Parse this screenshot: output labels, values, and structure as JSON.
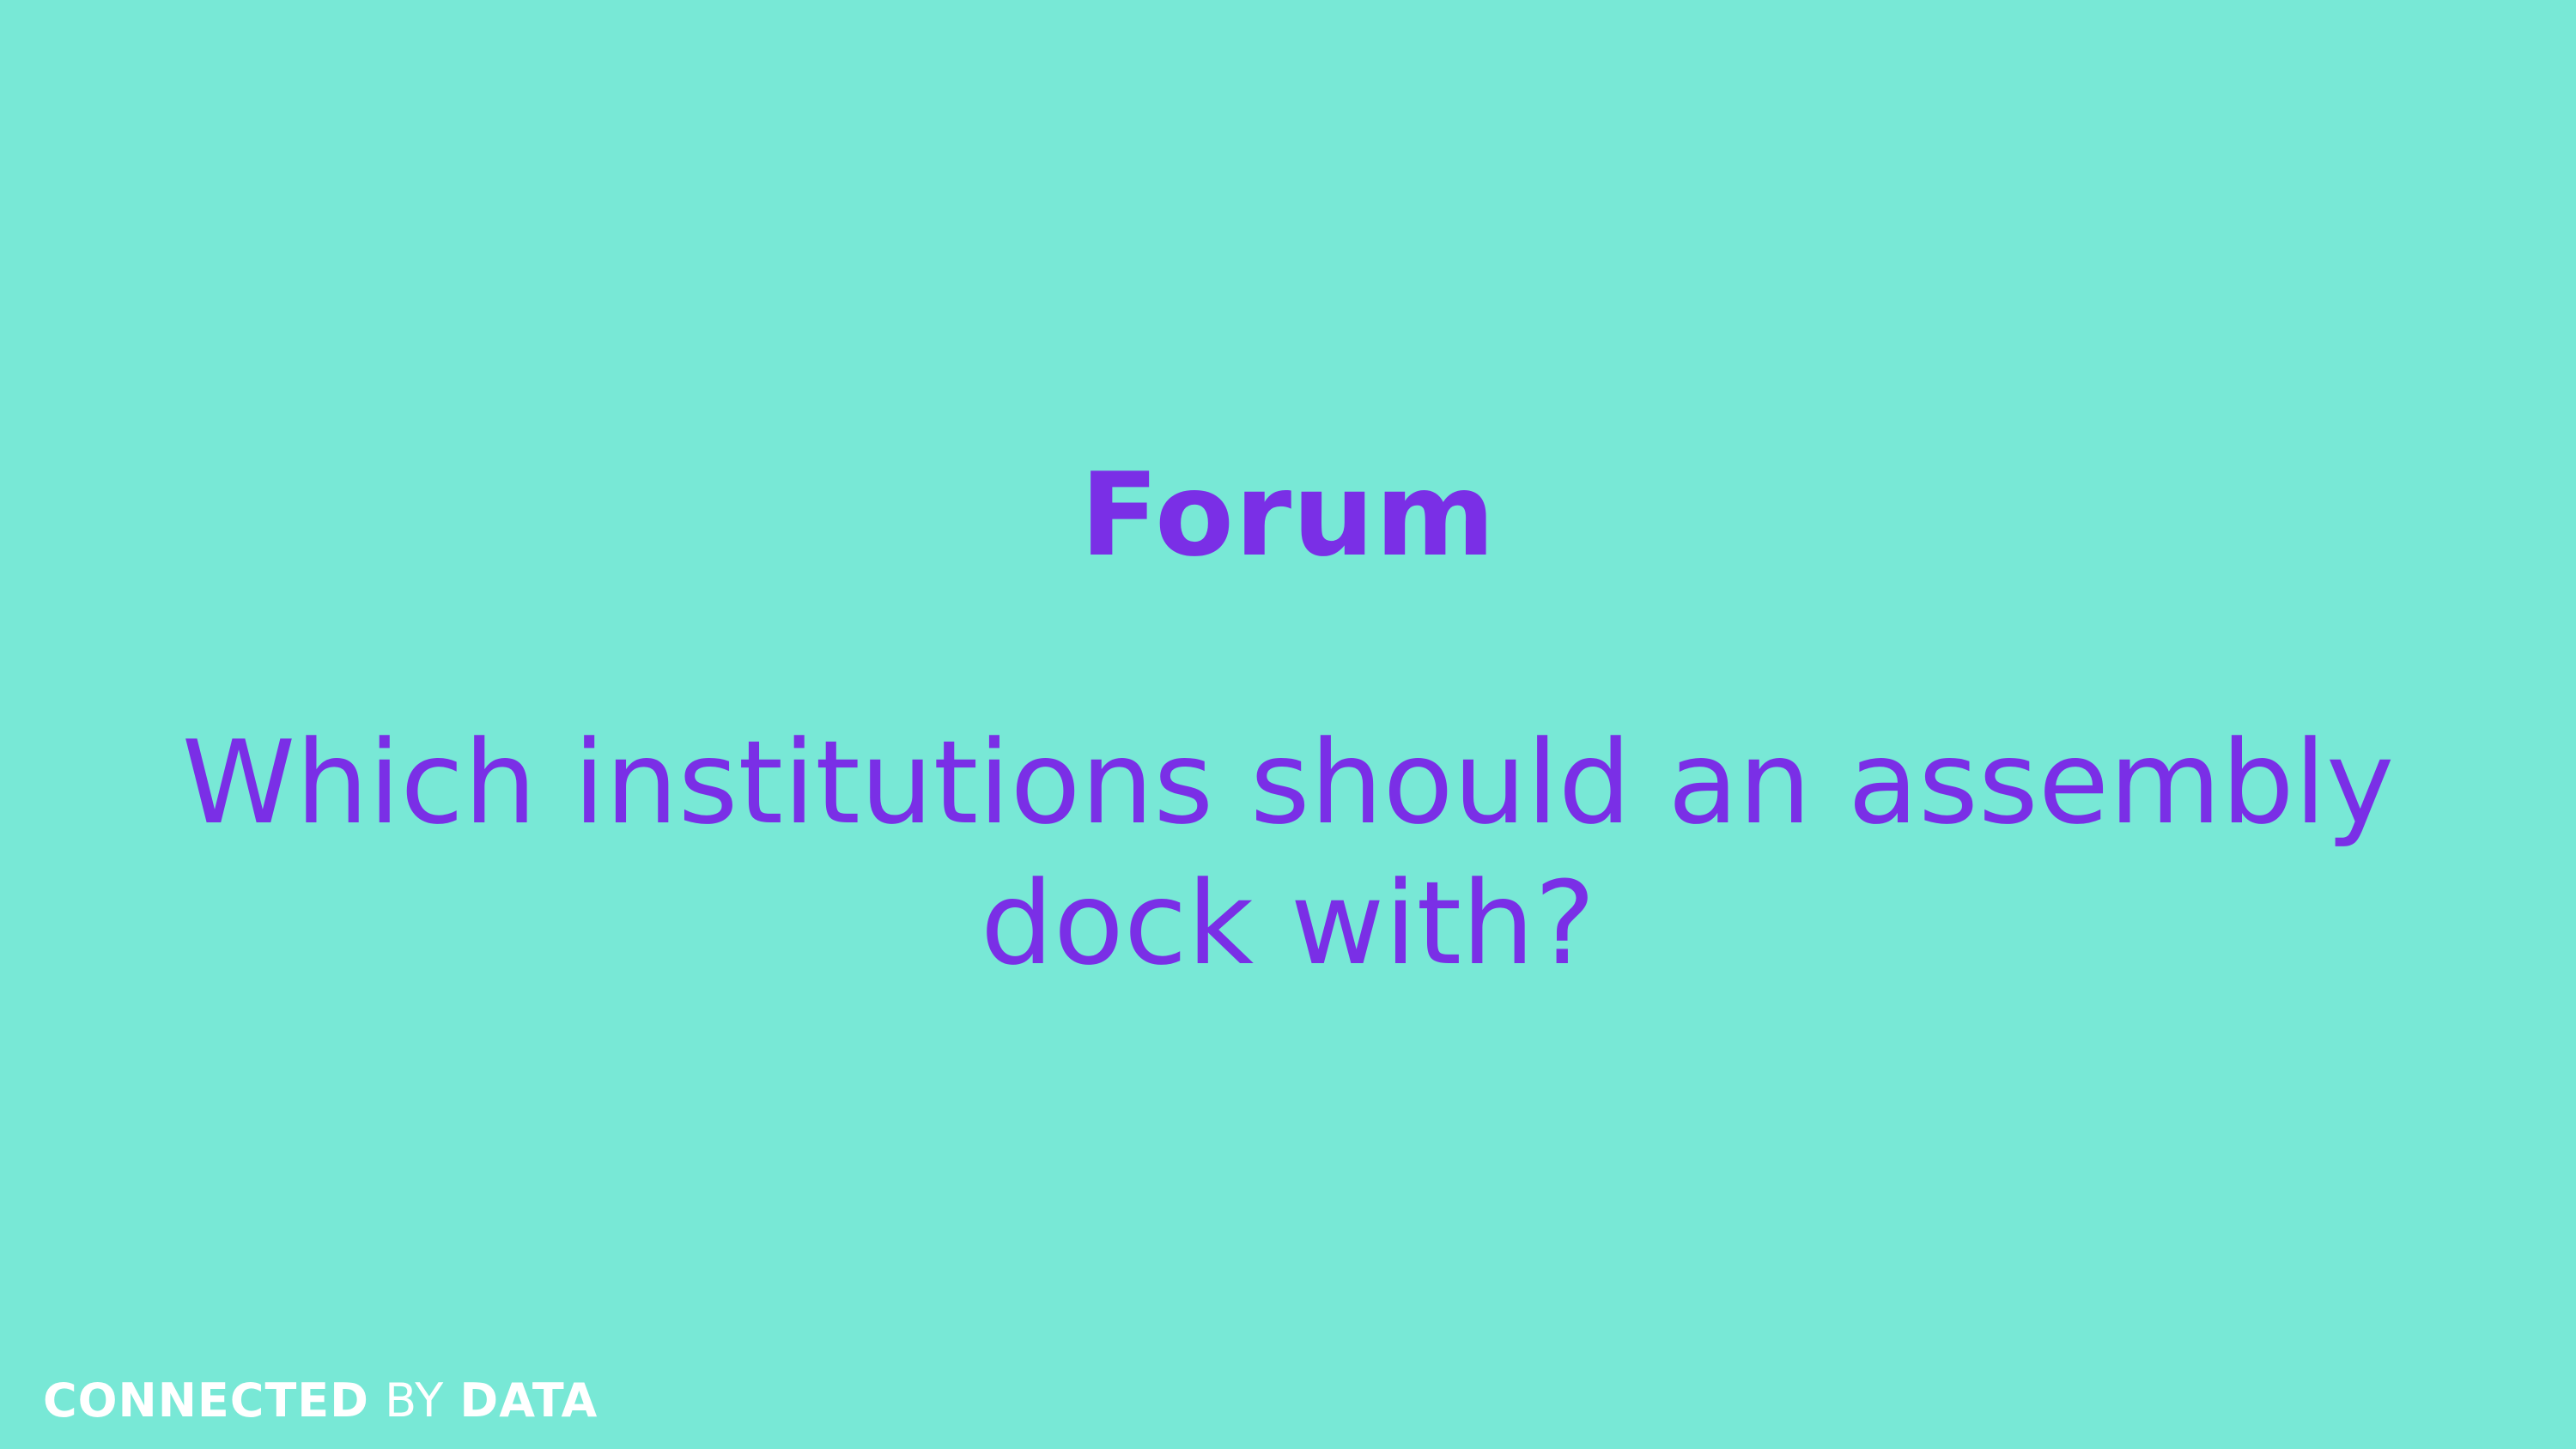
{
  "slide": {
    "title": "Forum",
    "question": "Which institutions should an assembly dock with?",
    "colors": {
      "background": "#78e8d6",
      "text": "#7a2fe6",
      "logo": "#ffffff"
    }
  },
  "logo": {
    "word1": "CONNECTED",
    "word2": "BY",
    "word3": "DATA"
  }
}
